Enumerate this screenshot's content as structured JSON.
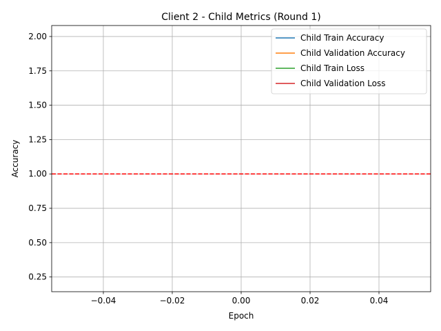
{
  "chart_data": {
    "type": "line",
    "title": "Client 2 - Child Metrics (Round 1)",
    "xlabel": "Epoch",
    "ylabel": "Accuracy",
    "xlim": [
      -0.055,
      0.055
    ],
    "ylim": [
      0.143,
      2.08
    ],
    "xticks": [
      -0.04,
      -0.02,
      0.0,
      0.02,
      0.04
    ],
    "xtick_labels": [
      "−0.04",
      "−0.02",
      "0.00",
      "0.02",
      "0.04"
    ],
    "yticks": [
      0.25,
      0.5,
      0.75,
      1.0,
      1.25,
      1.5,
      1.75,
      2.0
    ],
    "ytick_labels": [
      "0.25",
      "0.50",
      "0.75",
      "1.00",
      "1.25",
      "1.50",
      "1.75",
      "2.00"
    ],
    "grid": true,
    "legend_position": "top-right",
    "series": [
      {
        "name": "Child Train Accuracy",
        "color": "#1f77b4",
        "x": [
          0
        ],
        "y": [
          1.0
        ]
      },
      {
        "name": "Child Validation Accuracy",
        "color": "#ff7f0e",
        "x": [
          0
        ],
        "y": [
          1.0
        ]
      },
      {
        "name": "Child Train Loss",
        "color": "#2ca02c",
        "x": [
          0
        ],
        "y": [
          1.0
        ]
      },
      {
        "name": "Child Validation Loss",
        "color": "#d62728",
        "x": [
          0
        ],
        "y": [
          1.0
        ]
      }
    ],
    "reference_line": {
      "y": 1.0,
      "color": "#ff0000",
      "style": "dashed"
    }
  }
}
